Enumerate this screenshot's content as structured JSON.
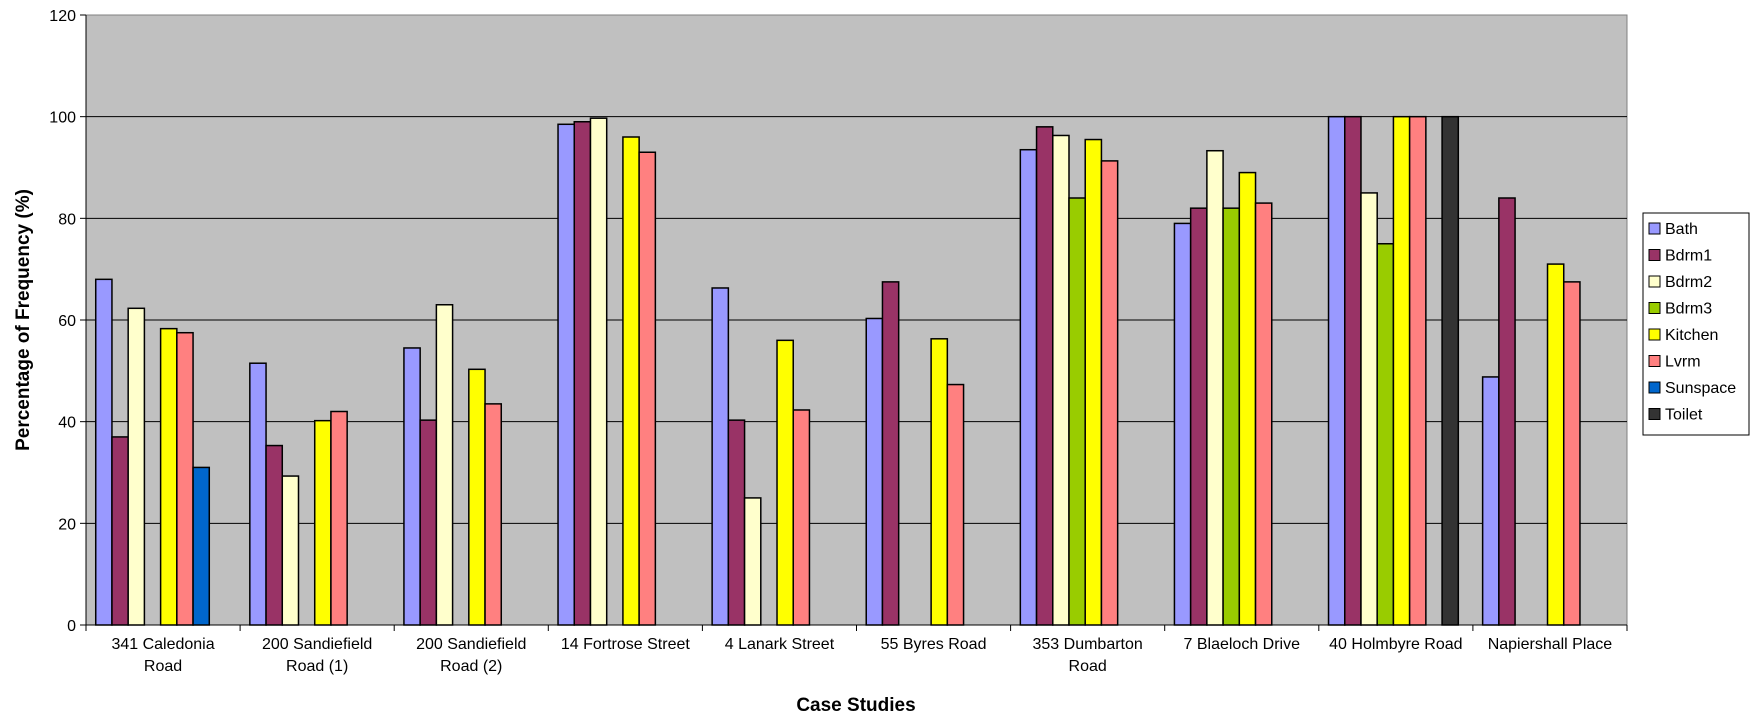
{
  "chart_data": {
    "type": "bar",
    "title": "",
    "xlabel": "Case Studies",
    "ylabel": "Percentage of Frequency (%)",
    "ylim": [
      0,
      120
    ],
    "yticks": [
      0,
      20,
      40,
      60,
      80,
      100,
      120
    ],
    "grid": true,
    "legend_position": "right",
    "plot_background": "#c0c0c0",
    "categories": [
      [
        "341 Caledonia",
        "Road"
      ],
      [
        "200 Sandiefield",
        "Road (1)"
      ],
      [
        "200 Sandiefield",
        "Road (2)"
      ],
      [
        "14 Fortrose Street"
      ],
      [
        "4 Lanark Street"
      ],
      [
        "55 Byres Road"
      ],
      [
        "353 Dumbarton",
        "Road"
      ],
      [
        "7 Blaeloch Drive"
      ],
      [
        "40 Holmbyre Road"
      ],
      [
        "Napiershall Place"
      ]
    ],
    "series": [
      {
        "name": "Bath",
        "color": "#9999ff",
        "values": [
          68,
          51.5,
          54.5,
          98.5,
          66.3,
          60.3,
          93.5,
          79,
          100,
          48.8
        ]
      },
      {
        "name": "Bdrm1",
        "color": "#993366",
        "values": [
          37,
          35.3,
          40.3,
          99,
          40.3,
          67.5,
          98,
          82,
          100,
          84
        ]
      },
      {
        "name": "Bdrm2",
        "color": "#ffffcc",
        "values": [
          62.3,
          29.3,
          63,
          99.7,
          25,
          null,
          96.3,
          93.3,
          85,
          null
        ]
      },
      {
        "name": "Bdrm3",
        "color": "#99cc00",
        "values": [
          null,
          null,
          null,
          null,
          null,
          null,
          84,
          82,
          75,
          null
        ]
      },
      {
        "name": "Kitchen",
        "color": "#ffff00",
        "values": [
          58.3,
          40.2,
          50.3,
          96,
          56,
          56.3,
          95.5,
          89,
          100,
          71
        ]
      },
      {
        "name": "Lvrm",
        "color": "#ff8080",
        "values": [
          57.5,
          42,
          43.5,
          93,
          42.3,
          47.3,
          91.3,
          83,
          100,
          67.5
        ]
      },
      {
        "name": "Sunspace",
        "color": "#0066cc",
        "values": [
          31,
          null,
          null,
          null,
          null,
          null,
          null,
          null,
          null,
          null
        ]
      },
      {
        "name": "Toilet",
        "color": "#333333",
        "values": [
          null,
          null,
          null,
          null,
          null,
          null,
          null,
          null,
          100,
          null
        ]
      }
    ]
  }
}
